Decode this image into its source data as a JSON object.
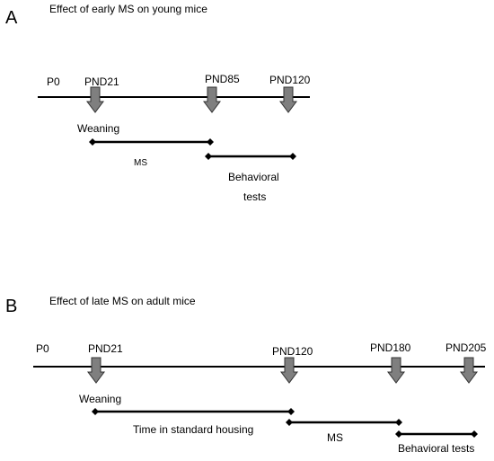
{
  "panels": [
    {
      "letter": "A",
      "title": "Effect of early MS on young mice",
      "start_label": "P0",
      "timepoints": [
        {
          "label": "PND21"
        },
        {
          "label": "PND85"
        },
        {
          "label": "PND120"
        }
      ],
      "weaning_label": "Weaning",
      "bars": [
        {
          "label_lines": [
            "MS"
          ]
        },
        {
          "label_lines": [
            "Behavioral",
            "tests"
          ]
        }
      ]
    },
    {
      "letter": "B",
      "title": "Effect of late MS on adult mice",
      "start_label": "P0",
      "timepoints": [
        {
          "label": "PND21"
        },
        {
          "label": "PND120"
        },
        {
          "label": "PND180"
        },
        {
          "label": "PND205"
        }
      ],
      "weaning_label": "Weaning",
      "bars": [
        {
          "label_lines": [
            "Time in standard housing"
          ]
        },
        {
          "label_lines": [
            "MS"
          ]
        },
        {
          "label_lines": [
            "Behavioral tests"
          ]
        }
      ]
    }
  ],
  "colors": {
    "line": "#000000",
    "arrow_fill": "#7f7f7f",
    "arrow_stroke": "#333333"
  }
}
